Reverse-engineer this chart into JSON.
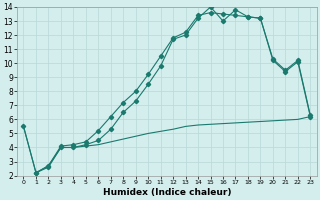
{
  "xlabel": "Humidex (Indice chaleur)",
  "background_color": "#d4eeee",
  "grid_color": "#b8d8d8",
  "line_color": "#1a7a6e",
  "xlim": [
    -0.5,
    23.5
  ],
  "ylim": [
    2,
    14
  ],
  "xticks": [
    0,
    1,
    2,
    3,
    4,
    5,
    6,
    7,
    8,
    9,
    10,
    11,
    12,
    13,
    14,
    15,
    16,
    17,
    18,
    19,
    20,
    21,
    22,
    23
  ],
  "yticks": [
    2,
    3,
    4,
    5,
    6,
    7,
    8,
    9,
    10,
    11,
    12,
    13,
    14
  ],
  "line1_x": [
    0,
    1,
    2,
    3,
    4,
    5,
    6,
    7,
    8,
    9,
    10,
    11,
    12,
    13,
    14,
    15,
    16,
    17,
    18,
    19,
    20,
    21,
    22,
    23
  ],
  "line1_y": [
    5.5,
    2.2,
    2.6,
    4.0,
    4.0,
    4.2,
    4.5,
    5.3,
    6.5,
    7.3,
    8.5,
    9.8,
    11.7,
    12.0,
    13.2,
    14.0,
    13.0,
    13.8,
    13.3,
    13.2,
    10.2,
    9.4,
    10.1,
    6.2
  ],
  "line2_x": [
    1,
    2,
    3,
    4,
    5,
    6,
    7,
    8,
    9,
    10,
    11,
    12,
    13,
    14,
    15,
    16,
    17,
    18,
    19,
    20,
    21,
    22,
    23
  ],
  "line2_y": [
    2.2,
    2.7,
    4.1,
    4.2,
    4.4,
    5.2,
    6.2,
    7.2,
    8.0,
    9.2,
    10.5,
    11.8,
    12.2,
    13.4,
    13.6,
    13.5,
    13.4,
    13.3,
    13.2,
    10.3,
    9.5,
    10.2,
    6.3
  ],
  "line3_x": [
    0,
    1,
    2,
    3,
    4,
    5,
    6,
    7,
    8,
    9,
    10,
    11,
    12,
    13,
    14,
    15,
    16,
    17,
    18,
    19,
    20,
    21,
    22,
    23
  ],
  "line3_y": [
    5.5,
    2.2,
    2.7,
    4.0,
    4.0,
    4.1,
    4.2,
    4.4,
    4.6,
    4.8,
    5.0,
    5.15,
    5.3,
    5.5,
    5.6,
    5.65,
    5.7,
    5.75,
    5.8,
    5.85,
    5.9,
    5.95,
    6.0,
    6.2
  ]
}
